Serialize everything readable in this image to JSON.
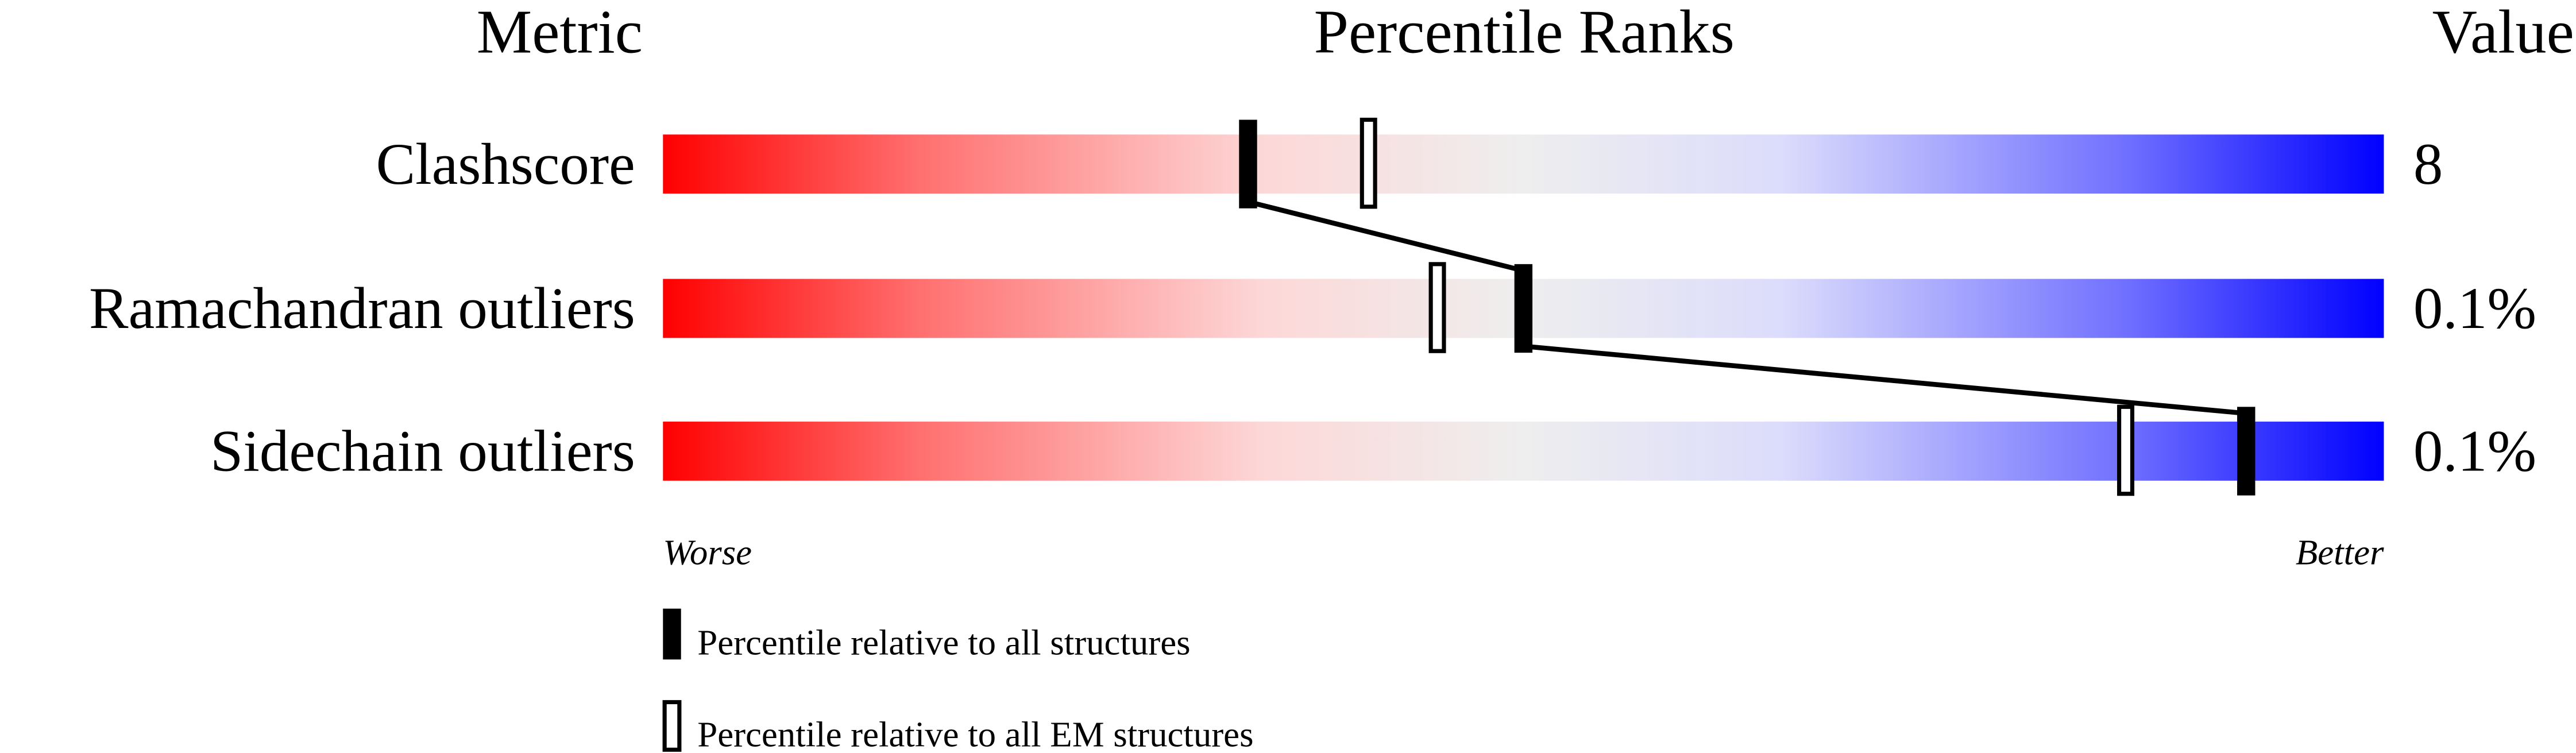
{
  "chart_data": {
    "type": "bar",
    "headers": {
      "metric": "Metric",
      "ranks": "Percentile Ranks",
      "value": "Value"
    },
    "xlim": [
      0,
      100
    ],
    "axis_labels": {
      "left": "Worse",
      "right": "Better"
    },
    "gradient_colors": [
      "#ff0000",
      "#ff7070",
      "#fdd8d8",
      "#eeeeee",
      "#dcdcfc",
      "#7070ff",
      "#0000ff"
    ],
    "rows": [
      {
        "metric": "Clashscore",
        "value": "8",
        "percentile_all": 34,
        "percentile_em": 41
      },
      {
        "metric": "Ramachandran outliers",
        "value": "0.1%",
        "percentile_all": 50,
        "percentile_em": 45
      },
      {
        "metric": "Sidechain outliers",
        "value": "0.1%",
        "percentile_all": 92,
        "percentile_em": 85
      }
    ],
    "legend": [
      {
        "marker": "filled",
        "label": "Percentile relative to all structures"
      },
      {
        "marker": "open",
        "label": "Percentile relative to all EM structures"
      }
    ]
  }
}
